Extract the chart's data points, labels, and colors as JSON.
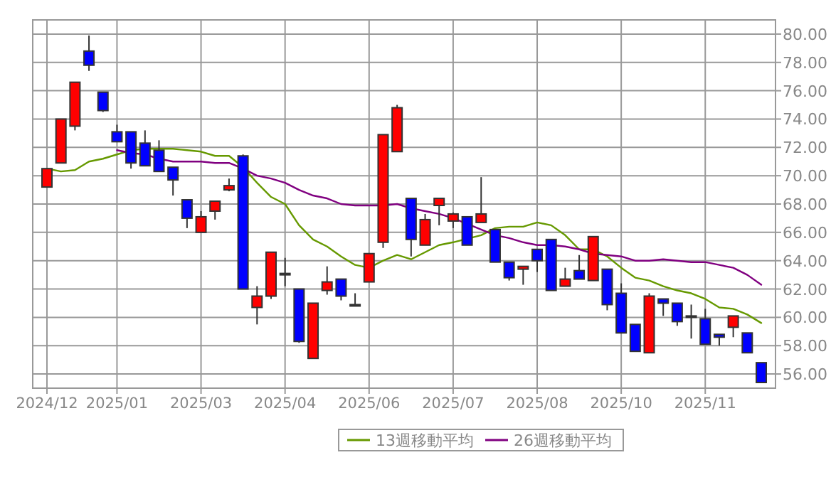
{
  "chart_data": {
    "type": "candlestick",
    "categories": [
      "2024/12",
      null,
      null,
      null,
      null,
      "2025/01",
      null,
      null,
      null,
      null,
      null,
      "2025/03",
      null,
      null,
      null,
      null,
      null,
      "2025/04",
      null,
      null,
      null,
      null,
      null,
      "2025/06",
      null,
      null,
      null,
      null,
      null,
      "2025/07",
      null,
      null,
      null,
      null,
      null,
      "2025/08",
      null,
      null,
      null,
      null,
      null,
      "2025/10",
      null,
      null,
      null,
      null,
      null,
      "2025/11",
      null,
      null,
      null,
      null
    ],
    "ohlc": [
      [
        69.2,
        70.5,
        69.2,
        70.5
      ],
      [
        70.9,
        74.0,
        70.9,
        74.0
      ],
      [
        73.5,
        76.6,
        73.2,
        76.6
      ],
      [
        78.8,
        79.9,
        77.4,
        77.8
      ],
      [
        75.9,
        75.9,
        74.5,
        74.6
      ],
      [
        73.1,
        73.6,
        72.4,
        72.4
      ],
      [
        73.1,
        73.1,
        70.5,
        70.9
      ],
      [
        72.3,
        73.2,
        70.7,
        70.7
      ],
      [
        71.8,
        72.5,
        70.3,
        70.3
      ],
      [
        70.6,
        70.6,
        68.6,
        69.7
      ],
      [
        68.3,
        68.3,
        66.3,
        67.0
      ],
      [
        66.0,
        67.5,
        66.0,
        67.1
      ],
      [
        67.5,
        68.2,
        66.9,
        68.2
      ],
      [
        69.0,
        69.8,
        68.9,
        69.3
      ],
      [
        71.4,
        71.5,
        62.0,
        62.0
      ],
      [
        60.7,
        62.2,
        59.5,
        61.5
      ],
      [
        61.5,
        64.6,
        61.3,
        64.6
      ],
      [
        63.1,
        64.2,
        62.2,
        63.1
      ],
      [
        62.0,
        62.0,
        58.2,
        58.3
      ],
      [
        57.1,
        61.0,
        57.1,
        61.0
      ],
      [
        61.9,
        63.6,
        61.6,
        62.5
      ],
      [
        62.7,
        62.7,
        61.2,
        61.5
      ],
      [
        60.9,
        61.7,
        60.9,
        60.9
      ],
      [
        62.5,
        64.5,
        62.5,
        64.5
      ],
      [
        65.3,
        72.9,
        64.9,
        72.9
      ],
      [
        71.7,
        75.0,
        71.7,
        74.8
      ],
      [
        68.4,
        68.4,
        64.3,
        65.5
      ],
      [
        65.1,
        67.3,
        65.1,
        66.9
      ],
      [
        67.9,
        68.4,
        66.5,
        68.4
      ],
      [
        66.8,
        67.4,
        66.3,
        67.3
      ],
      [
        67.1,
        67.1,
        65.1,
        65.1
      ],
      [
        66.7,
        69.9,
        66.7,
        67.3
      ],
      [
        66.2,
        66.2,
        63.9,
        63.9
      ],
      [
        63.9,
        63.9,
        62.6,
        62.8
      ],
      [
        63.4,
        63.6,
        62.3,
        63.6
      ],
      [
        64.8,
        64.8,
        63.2,
        64.0
      ],
      [
        65.5,
        65.5,
        61.9,
        61.9
      ],
      [
        62.2,
        63.5,
        62.2,
        62.7
      ],
      [
        63.3,
        64.4,
        62.7,
        62.7
      ],
      [
        62.6,
        65.7,
        62.6,
        65.7
      ],
      [
        63.4,
        63.4,
        60.5,
        60.9
      ],
      [
        61.7,
        62.4,
        58.9,
        58.9
      ],
      [
        59.5,
        59.5,
        57.6,
        57.6
      ],
      [
        57.5,
        61.7,
        57.5,
        61.5
      ],
      [
        61.3,
        61.3,
        60.1,
        61.0
      ],
      [
        61.0,
        61.0,
        59.4,
        59.7
      ],
      [
        60.1,
        60.9,
        58.5,
        60.1
      ],
      [
        59.9,
        60.6,
        58.1,
        58.1
      ],
      [
        58.8,
        58.8,
        58.0,
        58.6
      ],
      [
        59.3,
        60.1,
        58.6,
        60.1
      ],
      [
        58.9,
        58.9,
        57.5,
        57.5
      ],
      [
        56.8,
        56.8,
        55.4,
        55.4
      ]
    ],
    "colors": [
      "#ff0000",
      "#ff0000",
      "#ff0000",
      "#0000ff",
      "#0000ff",
      "#0000ff",
      "#0000ff",
      "#0000ff",
      "#0000ff",
      "#0000ff",
      "#0000ff",
      "#ff0000",
      "#ff0000",
      "#ff0000",
      "#0000ff",
      "#ff0000",
      "#ff0000",
      "#ff0000",
      "#0000ff",
      "#ff0000",
      "#ff0000",
      "#0000ff",
      "#0000ff",
      "#ff0000",
      "#ff0000",
      "#ff0000",
      "#0000ff",
      "#ff0000",
      "#ff0000",
      "#ff0000",
      "#0000ff",
      "#ff0000",
      "#0000ff",
      "#0000ff",
      "#ff0000",
      "#0000ff",
      "#0000ff",
      "#ff0000",
      "#0000ff",
      "#ff0000",
      "#0000ff",
      "#0000ff",
      "#0000ff",
      "#ff0000",
      "#0000ff",
      "#0000ff",
      "#0000ff",
      "#0000ff",
      "#0000ff",
      "#ff0000",
      "#0000ff",
      "#0000ff"
    ],
    "series": [
      {
        "name": "13週移動平均",
        "type": "line",
        "color": "#669900",
        "values": [
          70.5,
          70.3,
          70.4,
          71.0,
          71.2,
          71.5,
          71.8,
          71.9,
          71.9,
          71.9,
          71.8,
          71.7,
          71.4,
          71.4,
          70.6,
          69.5,
          68.5,
          68.0,
          66.5,
          65.5,
          65.0,
          64.3,
          63.7,
          63.5,
          64.0,
          64.4,
          64.1,
          64.6,
          65.1,
          65.3,
          null,
          65.8,
          66.3,
          66.4,
          66.4,
          66.7,
          66.5,
          65.8,
          64.8,
          64.8,
          64.3,
          63.5,
          62.8,
          62.6,
          62.2,
          61.9,
          61.7,
          61.3,
          60.7,
          60.6,
          60.2,
          59.6
        ]
      },
      {
        "name": "26週移動平均",
        "type": "line",
        "color": "#800080",
        "values": [
          null,
          null,
          null,
          null,
          null,
          71.8,
          71.6,
          71.5,
          71.2,
          71.0,
          71.0,
          71.0,
          70.9,
          70.9,
          70.5,
          70.0,
          69.8,
          69.5,
          69.0,
          68.6,
          68.4,
          68.0,
          67.9,
          67.9,
          67.9,
          68.0,
          67.7,
          67.5,
          67.3,
          67.0,
          66.6,
          66.2,
          65.8,
          65.6,
          65.3,
          65.1,
          65.1,
          65.0,
          64.8,
          64.5,
          64.4,
          64.3,
          64.0,
          64.0,
          64.1,
          64.0,
          63.9,
          63.9,
          63.7,
          63.5,
          63.0,
          62.3
        ]
      }
    ],
    "ylim": [
      55,
      81
    ],
    "yticks": [
      {
        "value": 56,
        "label": "56.00"
      },
      {
        "value": 58,
        "label": "58.00"
      },
      {
        "value": 60,
        "label": "60.00"
      },
      {
        "value": 62,
        "label": "62.00"
      },
      {
        "value": 64,
        "label": "64.00"
      },
      {
        "value": 66,
        "label": "66.00"
      },
      {
        "value": 68,
        "label": "68.00"
      },
      {
        "value": 70,
        "label": "70.00"
      },
      {
        "value": 72,
        "label": "72.00"
      },
      {
        "value": 74,
        "label": "74.00"
      },
      {
        "value": 76,
        "label": "76.00"
      },
      {
        "value": 78,
        "label": "78.00"
      },
      {
        "value": 80,
        "label": "80.00"
      }
    ],
    "grid": true,
    "legend": "bottom"
  }
}
